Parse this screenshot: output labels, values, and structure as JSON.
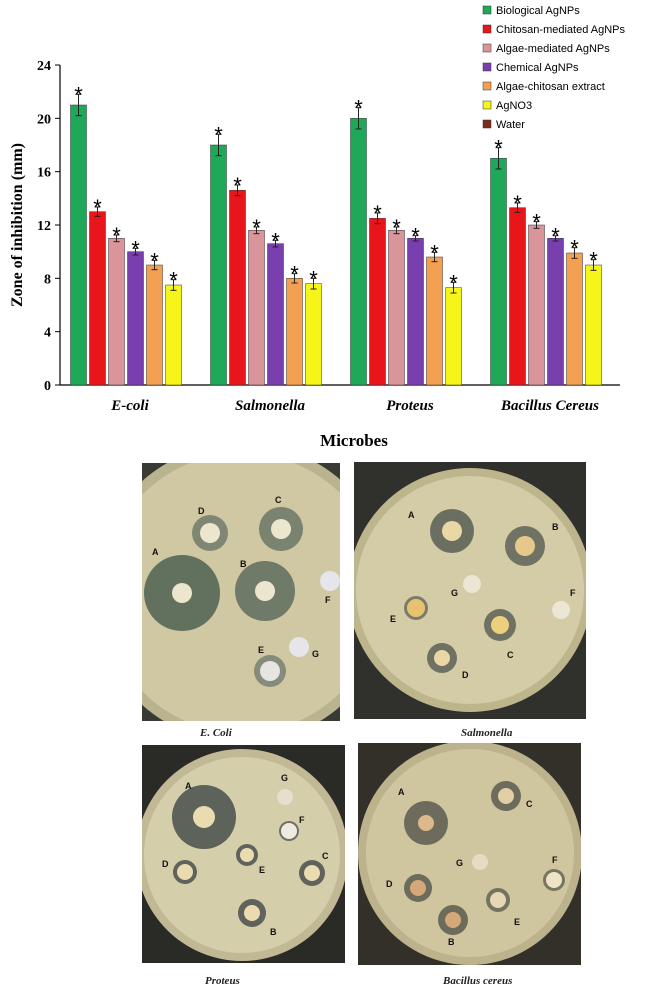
{
  "chart_data": {
    "type": "bar",
    "ylabel": "Zone of inhibition (mm)",
    "xlabel": "Microbes",
    "ylim": [
      0,
      24
    ],
    "yticks": [
      0,
      4,
      8,
      12,
      16,
      20,
      24
    ],
    "categories": [
      "E-coli",
      "Salmonella",
      "Proteus",
      "Bacillus Cereus"
    ],
    "legend_position": "top-right",
    "significance_marker": "*",
    "series": [
      {
        "name": "Biological AgNPs",
        "color": "#1fa857",
        "values": [
          21.0,
          18.0,
          20.0,
          17.0
        ],
        "errors": [
          0.8,
          0.8,
          0.8,
          0.8
        ]
      },
      {
        "name": "Chitosan-mediated AgNPs",
        "color": "#e8151b",
        "values": [
          13.0,
          14.6,
          12.5,
          13.3
        ],
        "errors": [
          0.35,
          0.4,
          0.4,
          0.35
        ]
      },
      {
        "name": "Algae-mediated AgNPs",
        "color": "#d9959a",
        "values": [
          11.0,
          11.6,
          11.6,
          12.0
        ],
        "errors": [
          0.25,
          0.25,
          0.25,
          0.25
        ]
      },
      {
        "name": "Chemical AgNPs",
        "color": "#7a3fae",
        "values": [
          10.0,
          10.6,
          11.0,
          11.0
        ],
        "errors": [
          0.25,
          0.25,
          0.2,
          0.2
        ]
      },
      {
        "name": "Algae-chitosan extract",
        "color": "#f4a052",
        "values": [
          9.0,
          8.0,
          9.6,
          9.9
        ],
        "errors": [
          0.35,
          0.35,
          0.35,
          0.4
        ]
      },
      {
        "name": "AgNO3",
        "color": "#f5f51a",
        "values": [
          7.5,
          7.6,
          7.3,
          9.0
        ],
        "errors": [
          0.4,
          0.4,
          0.4,
          0.4
        ]
      },
      {
        "name": "Water",
        "color": "#7b2a1c",
        "values": [
          0,
          0,
          0,
          0
        ],
        "errors": [
          0,
          0,
          0,
          0
        ]
      }
    ]
  },
  "photos": {
    "captions": [
      "E. Coli",
      "Salmonella",
      "Proteus",
      "Bacillus cereus"
    ],
    "plates": [
      {
        "disk_labels": [
          "A",
          "B",
          "C",
          "D",
          "E",
          "F",
          "G"
        ]
      },
      {
        "disk_labels": [
          "A",
          "B",
          "C",
          "D",
          "E",
          "F",
          "G"
        ]
      },
      {
        "disk_labels": [
          "A",
          "B",
          "C",
          "D",
          "E",
          "F",
          "G"
        ]
      },
      {
        "disk_labels": [
          "A",
          "B",
          "C",
          "D",
          "E",
          "F",
          "G"
        ]
      }
    ]
  }
}
